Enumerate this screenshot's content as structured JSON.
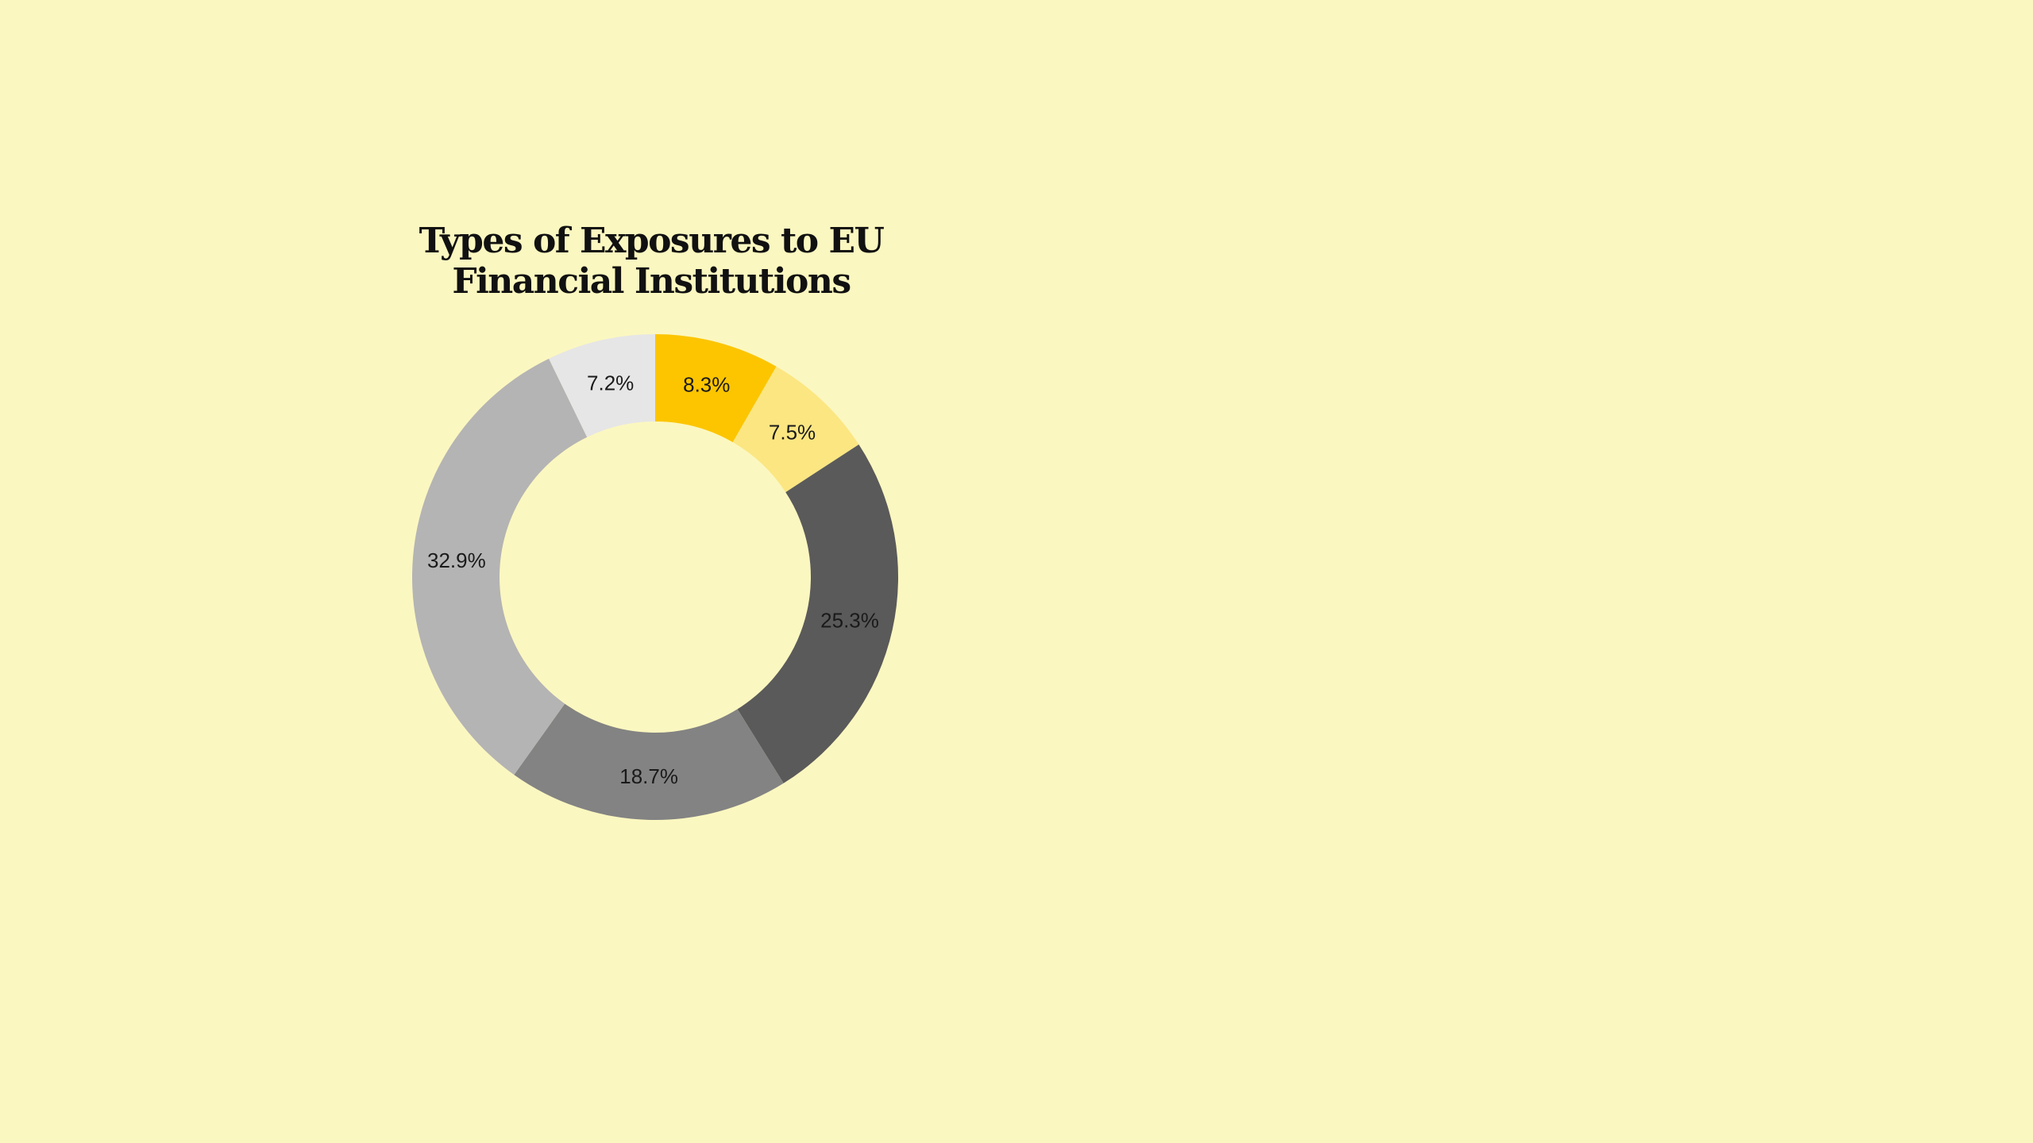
{
  "background_color": "#fbf7c0",
  "chart_data": {
    "type": "pie",
    "variant": "donut",
    "title_lines": [
      "Types of Exposures to EU",
      "Financial Institutions"
    ],
    "start_angle_deg": 0,
    "direction": "clockwise",
    "slices": [
      {
        "label": "8.3%",
        "value": 8.3,
        "color": "#fcc500"
      },
      {
        "label": "7.5%",
        "value": 7.5,
        "color": "#fbe682"
      },
      {
        "label": "25.3%",
        "value": 25.3,
        "color": "#5a5a5a"
      },
      {
        "label": "18.7%",
        "value": 18.7,
        "color": "#838383"
      },
      {
        "label": "32.9%",
        "value": 32.9,
        "color": "#b4b4b4"
      },
      {
        "label": "7.2%",
        "value": 7.2,
        "color": "#e6e6e6"
      }
    ]
  }
}
